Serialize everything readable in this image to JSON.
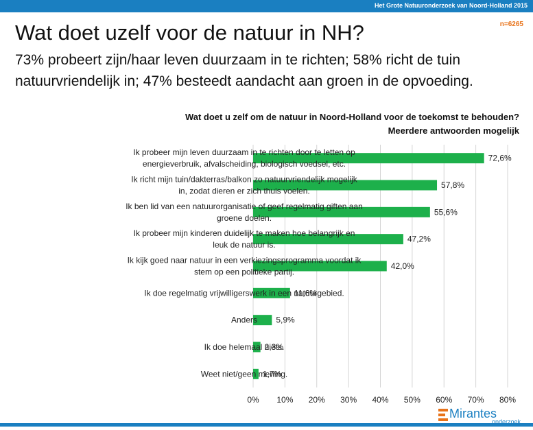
{
  "header": {
    "report_title": "Het Grote Natuuronderzoek van Noord-Holland 2015",
    "sample_size": "n=6265"
  },
  "slide": {
    "title": "Wat doet uzelf voor de natuur in NH?",
    "subtitle": "73% probeert zijn/haar leven duurzaam in te richten; 58% richt de tuin natuurvriendelijk in; 47% besteedt aandacht aan groen in de opvoeding."
  },
  "chart_data": {
    "type": "bar",
    "orientation": "horizontal",
    "title": [
      "Wat doet u zelf om de natuur in Noord-Holland voor de toekomst te behouden?",
      "Meerdere antwoorden mogelijk"
    ],
    "categories": [
      [
        "Ik probeer mijn leven duurzaam in te richten door te letten op",
        "energieverbruik, afvalscheiding, biologisch voedsel, etc."
      ],
      [
        "Ik richt mijn tuin/dakterras/balkon zo natuurvriendelijk mogelijk",
        "in, zodat dieren er zich thuis voelen."
      ],
      [
        "Ik ben lid van een natuurorganisatie of geef regelmatig giften aan",
        "groene doelen."
      ],
      [
        "Ik probeer mijn kinderen duidelijk te maken hoe belangrijk en",
        "leuk de natuur is."
      ],
      [
        "Ik kijk goed naar natuur in een verkiezingsprogramma voordat ik",
        "stem op een politieke partij."
      ],
      [
        "Ik doe regelmatig vrijwilligerswerk in een natuurgebied."
      ],
      [
        "Anders"
      ],
      [
        "Ik doe helemaal niets."
      ],
      [
        "Weet niet/geen mening."
      ]
    ],
    "values": [
      72.6,
      57.8,
      55.6,
      47.2,
      42.0,
      11.6,
      5.9,
      2.3,
      1.7
    ],
    "value_labels": [
      "72,6%",
      "57,8%",
      "55,6%",
      "47,2%",
      "42,0%",
      "11,6%",
      "5,9%",
      "2,3%",
      "1,7%"
    ],
    "xlim": [
      0,
      80
    ],
    "xticks": [
      0,
      10,
      20,
      30,
      40,
      50,
      60,
      70,
      80
    ],
    "xtick_labels": [
      "0%",
      "10%",
      "20%",
      "30%",
      "40%",
      "50%",
      "60%",
      "70%",
      "80%"
    ],
    "grid": true,
    "bar_color": "#1db04b",
    "grid_color": "#d4d4d4"
  },
  "brand": {
    "name": "Mirantes",
    "tagline": "onderzoek",
    "color": "#1a7fc1",
    "accent": "#e8731a"
  }
}
